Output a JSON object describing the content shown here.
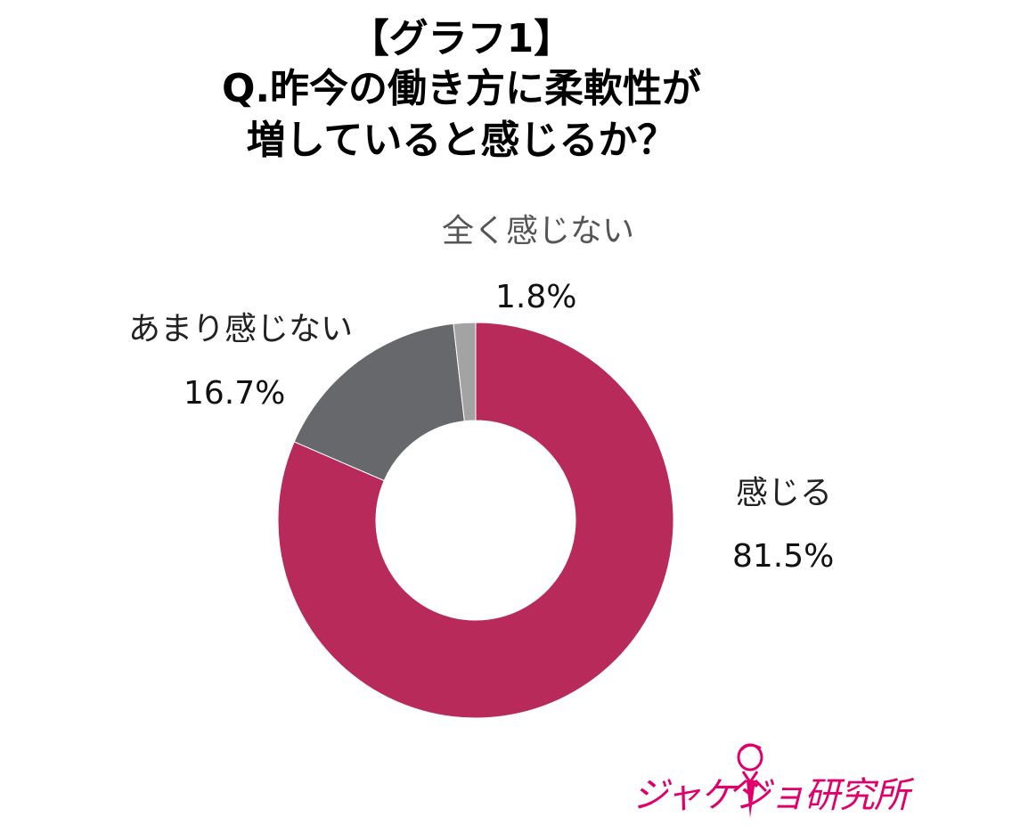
{
  "chart_data": {
    "type": "pie",
    "variant": "donut",
    "title_lines": [
      "【グラフ1】",
      "Q.昨今の働き方に柔軟性が",
      "増していると感じるか？"
    ],
    "slices": [
      {
        "label": "感じる",
        "value": 81.5,
        "display": "81.5%",
        "color": "#b72a59"
      },
      {
        "label": "あまり感じない",
        "value": 16.7,
        "display": "16.7%",
        "color": "#67686b"
      },
      {
        "label": "全く感じない",
        "value": 1.8,
        "display": "1.8%",
        "color": "#a3a3a3"
      }
    ],
    "start_angle": "12 o'clock",
    "direction": "clockwise",
    "legend": "none (direct labels)"
  },
  "branding": {
    "logo_text": "ジャケジョ研究所",
    "logo_color": "#e0006c"
  }
}
